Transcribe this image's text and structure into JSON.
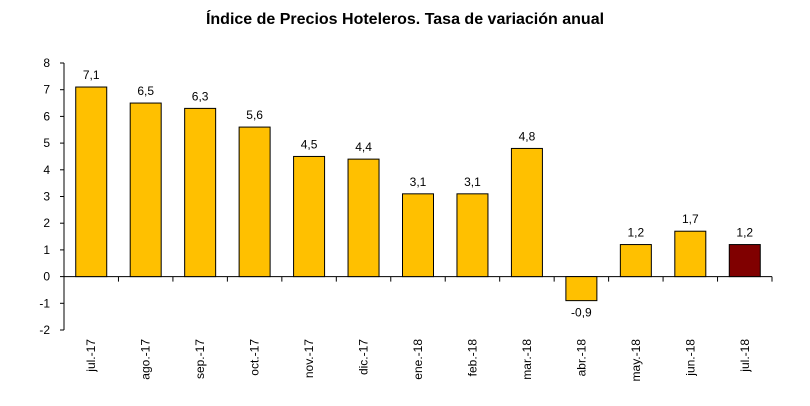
{
  "chart_data": {
    "type": "bar",
    "title": "Índice de Precios Hoteleros. Tasa de variación anual",
    "xlabel": "",
    "ylabel": "",
    "ylim": [
      -2,
      8
    ],
    "yticks": [
      "8",
      "7",
      "6",
      "5",
      "4",
      "3",
      "2",
      "1",
      "0",
      "-1",
      "-2"
    ],
    "categories": [
      "jul.-17",
      "ago.-17",
      "sep.-17",
      "oct.-17",
      "nov.-17",
      "dic.-17",
      "ene.-18",
      "feb.-18",
      "mar.-18",
      "abr.-18",
      "may.-18",
      "jun.-18",
      "jul.-18"
    ],
    "values": [
      7.1,
      6.5,
      6.3,
      5.6,
      4.5,
      4.4,
      3.1,
      3.1,
      4.8,
      -0.9,
      1.2,
      1.7,
      1.2
    ],
    "value_labels": [
      "7,1",
      "6,5",
      "6,3",
      "5,6",
      "4,5",
      "4,4",
      "3,1",
      "3,1",
      "4,8",
      "-0,9",
      "1,2",
      "1,7",
      "1,2"
    ],
    "grid": false,
    "legend": "none",
    "colors": {
      "bar": "#ffc000",
      "highlight": "#800000",
      "axis": "#000000"
    },
    "highlight_index": 12
  }
}
